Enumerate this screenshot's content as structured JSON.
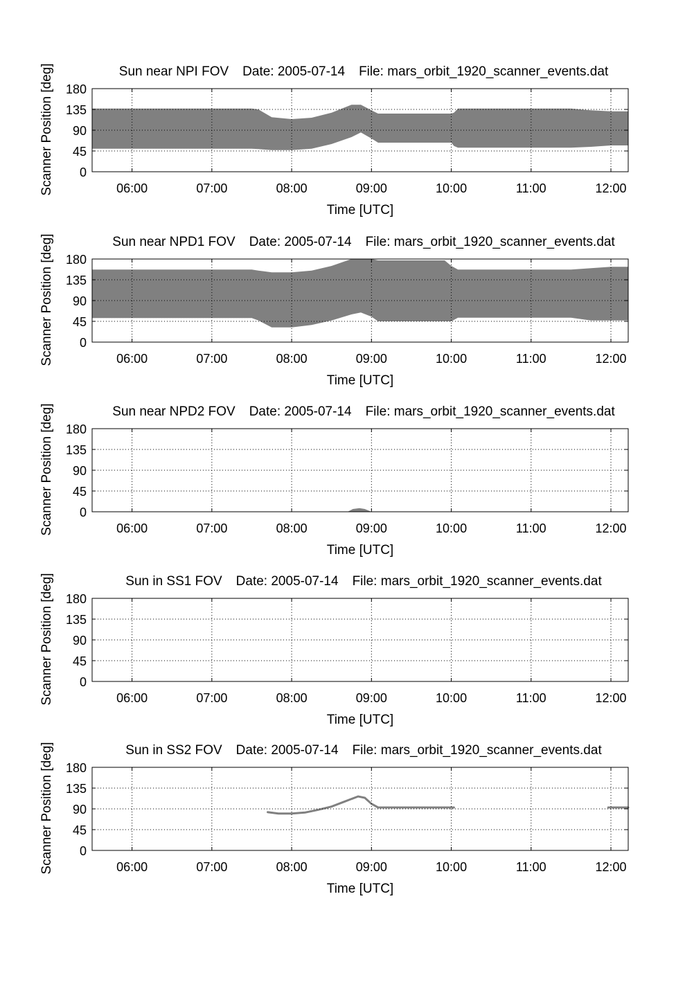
{
  "chart_data": [
    {
      "type": "area",
      "title": "Sun near NPI FOV",
      "date": "Date: 2005-07-14",
      "file": "File: mars_orbit_1920_scanner_events.dat",
      "xlabel": "Time [UTC]",
      "ylabel": "Scanner Position [deg]",
      "xlim": [
        "05:30",
        "12:13"
      ],
      "ylim": [
        0,
        180
      ],
      "x_ticks": [
        "06:00",
        "07:00",
        "08:00",
        "09:00",
        "10:00",
        "11:00",
        "12:00"
      ],
      "y_ticks": [
        "0",
        "45",
        "90",
        "135",
        "180"
      ],
      "grid": true,
      "series": [
        {
          "color": "#808080",
          "x": [
            "05:30",
            "07:30",
            "07:35",
            "07:45",
            "08:00",
            "08:15",
            "08:30",
            "08:45",
            "08:52",
            "09:00",
            "09:05",
            "10:00",
            "10:02",
            "10:05",
            "11:30",
            "11:45",
            "12:00",
            "12:13"
          ],
          "lower": [
            50,
            50,
            49,
            47,
            47,
            50,
            60,
            75,
            85,
            72,
            63,
            63,
            56,
            52,
            52,
            54,
            57,
            57
          ],
          "upper": [
            137,
            137,
            135,
            118,
            114,
            117,
            128,
            145,
            145,
            133,
            126,
            126,
            128,
            137,
            137,
            133,
            131,
            131
          ]
        }
      ]
    },
    {
      "type": "area",
      "title": "Sun near NPD1 FOV",
      "date": "Date: 2005-07-14",
      "file": "File: mars_orbit_1920_scanner_events.dat",
      "xlabel": "Time [UTC]",
      "ylabel": "Scanner Position [deg]",
      "xlim": [
        "05:30",
        "12:13"
      ],
      "ylim": [
        0,
        180
      ],
      "x_ticks": [
        "06:00",
        "07:00",
        "08:00",
        "09:00",
        "10:00",
        "11:00",
        "12:00"
      ],
      "y_ticks": [
        "0",
        "45",
        "90",
        "135",
        "180"
      ],
      "grid": true,
      "series": [
        {
          "color": "#808080",
          "x": [
            "05:30",
            "07:30",
            "07:35",
            "07:45",
            "08:00",
            "08:15",
            "08:30",
            "08:45",
            "08:52",
            "09:00",
            "09:05",
            "09:55",
            "10:00",
            "10:05",
            "11:30",
            "11:45",
            "12:00",
            "12:13"
          ],
          "lower": [
            52,
            52,
            47,
            32,
            32,
            37,
            47,
            60,
            64,
            55,
            45,
            45,
            45,
            53,
            53,
            47,
            47,
            47
          ],
          "upper": [
            157,
            157,
            155,
            151,
            151,
            155,
            165,
            180,
            180,
            180,
            177,
            177,
            165,
            157,
            157,
            160,
            163,
            163
          ]
        }
      ]
    },
    {
      "type": "area",
      "title": "Sun near NPD2 FOV",
      "date": "Date: 2005-07-14",
      "file": "File: mars_orbit_1920_scanner_events.dat",
      "xlabel": "Time [UTC]",
      "ylabel": "Scanner Position [deg]",
      "xlim": [
        "05:30",
        "12:13"
      ],
      "ylim": [
        0,
        180
      ],
      "x_ticks": [
        "06:00",
        "07:00",
        "08:00",
        "09:00",
        "10:00",
        "11:00",
        "12:00"
      ],
      "y_ticks": [
        "0",
        "45",
        "90",
        "135",
        "180"
      ],
      "grid": true,
      "series": [
        {
          "color": "#808080",
          "x": [
            "08:42",
            "08:46",
            "08:51",
            "08:55",
            "09:00"
          ],
          "lower": [
            0,
            0,
            0,
            0,
            0
          ],
          "upper": [
            0,
            6,
            8,
            6,
            0
          ]
        }
      ]
    },
    {
      "type": "area",
      "title": "Sun in SS1 FOV",
      "date": "Date: 2005-07-14",
      "file": "File: mars_orbit_1920_scanner_events.dat",
      "xlabel": "Time [UTC]",
      "ylabel": "Scanner Position [deg]",
      "xlim": [
        "05:30",
        "12:13"
      ],
      "ylim": [
        0,
        180
      ],
      "x_ticks": [
        "06:00",
        "07:00",
        "08:00",
        "09:00",
        "10:00",
        "11:00",
        "12:00"
      ],
      "y_ticks": [
        "0",
        "45",
        "90",
        "135",
        "180"
      ],
      "grid": true,
      "series": []
    },
    {
      "type": "line",
      "title": "Sun in SS2 FOV",
      "date": "Date: 2005-07-14",
      "file": "File: mars_orbit_1920_scanner_events.dat",
      "xlabel": "Time [UTC]",
      "ylabel": "Scanner Position [deg]",
      "xlim": [
        "05:30",
        "12:13"
      ],
      "ylim": [
        0,
        180
      ],
      "x_ticks": [
        "06:00",
        "07:00",
        "08:00",
        "09:00",
        "10:00",
        "11:00",
        "12:00"
      ],
      "y_ticks": [
        "0",
        "45",
        "90",
        "135",
        "180"
      ],
      "grid": true,
      "series": [
        {
          "color": "#808080",
          "x": [
            "07:42",
            "07:50",
            "08:00",
            "08:10",
            "08:20",
            "08:30",
            "08:40",
            "08:50",
            "08:55",
            "09:00",
            "09:05",
            "10:00",
            "10:02"
          ],
          "y": [
            83,
            80,
            80,
            82,
            88,
            95,
            106,
            117,
            114,
            101,
            93,
            93,
            93
          ]
        },
        {
          "color": "#808080",
          "x": [
            "11:58",
            "12:13"
          ],
          "y": [
            93,
            93
          ]
        }
      ]
    }
  ]
}
